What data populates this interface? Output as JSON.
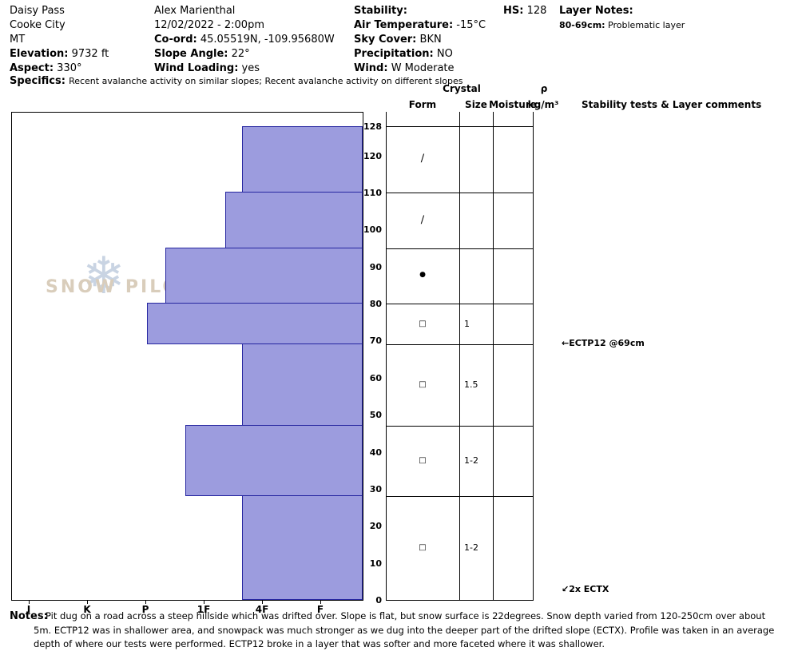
{
  "header": {
    "columns": [
      {
        "lines": [
          {
            "text": "Daisy Pass"
          },
          {
            "text": "Cooke City"
          },
          {
            "text": "MT"
          },
          {
            "label": "Elevation:",
            "value": "9732 ft"
          },
          {
            "label": "Aspect:",
            "value": "330°"
          }
        ]
      },
      {
        "lines": [
          {
            "text": "Alex Marienthal"
          },
          {
            "text": "12/02/2022 - 2:00pm"
          },
          {
            "label": "Co-ord:",
            "value": "45.05519N, -109.95680W"
          },
          {
            "label": "Slope Angle:",
            "value": "22°"
          },
          {
            "label": "Wind Loading:",
            "value": "yes"
          }
        ]
      },
      {
        "lines": [
          {
            "label": "Stability:",
            "value": ""
          },
          {
            "label": "Air Temperature:",
            "value": "-15°C"
          },
          {
            "label": "Sky Cover:",
            "value": "BKN"
          },
          {
            "label": "Precipitation:",
            "value": "NO"
          },
          {
            "label": "Wind:",
            "value": "W Moderate"
          }
        ]
      },
      {
        "lines": [
          {
            "label": "HS:",
            "value": "128"
          }
        ]
      },
      {
        "lines": [
          {
            "label": "Layer Notes:",
            "value": ""
          },
          {
            "label": "80-69cm:",
            "value": "Problematic layer",
            "small": true
          }
        ]
      }
    ],
    "specifics_label": "Specifics:",
    "specifics_text": "Recent avalanche activity on similar slopes; Recent avalanche activity on different slopes"
  },
  "table": {
    "header": {
      "crystal": "Crystal",
      "form": "Form",
      "size": "Size",
      "moisture": "Moisture",
      "density_rho": "ρ",
      "density_units": "kg/m³",
      "stability": "Stability tests & Layer comments"
    }
  },
  "watermark": {
    "text": "SNOW PILOT",
    "icon": "snowflake"
  },
  "chart_data": {
    "type": "bar",
    "subtype": "snow-profile-hardness",
    "hs_cm": 128,
    "depth_axis": {
      "unit": "cm",
      "max": 128,
      "ticks": [
        128,
        120,
        110,
        100,
        90,
        80,
        70,
        60,
        50,
        40,
        30,
        20,
        10,
        0
      ]
    },
    "hardness_axis": {
      "categories": [
        "I",
        "K",
        "P",
        "1F",
        "4F",
        "F"
      ],
      "scale_values": {
        "F": 1,
        "4F": 2,
        "1F": 3,
        "P": 4,
        "K": 5,
        "I": 6
      }
    },
    "layers": [
      {
        "top_cm": 128,
        "bottom_cm": 110,
        "hardness": "4F+",
        "hardness_value": 2.34,
        "grain_form": "DF",
        "grain_symbol": "∕",
        "grain_size_mm": "",
        "moisture": ""
      },
      {
        "top_cm": 110,
        "bottom_cm": 95,
        "hardness": "1F-",
        "hardness_value": 2.63,
        "grain_form": "DF",
        "grain_symbol": "∕",
        "grain_size_mm": "",
        "moisture": ""
      },
      {
        "top_cm": 95,
        "bottom_cm": 80,
        "hardness": "P-",
        "hardness_value": 3.66,
        "grain_form": "RG",
        "grain_symbol": "●",
        "grain_size_mm": "",
        "moisture": ""
      },
      {
        "top_cm": 80,
        "bottom_cm": 69,
        "hardness": "P",
        "hardness_value": 3.97,
        "grain_form": "FC",
        "grain_symbol": "□",
        "grain_size_mm": "1",
        "moisture": ""
      },
      {
        "top_cm": 69,
        "bottom_cm": 47,
        "hardness": "4F+",
        "hardness_value": 2.34,
        "grain_form": "FC",
        "grain_symbol": "□",
        "grain_size_mm": "1.5",
        "moisture": ""
      },
      {
        "top_cm": 47,
        "bottom_cm": 28,
        "hardness": "1F+",
        "hardness_value": 3.32,
        "grain_form": "FC",
        "grain_symbol": "□",
        "grain_size_mm": "1-2",
        "moisture": ""
      },
      {
        "top_cm": 28,
        "bottom_cm": 0,
        "hardness": "4F+",
        "hardness_value": 2.34,
        "grain_form": "FC",
        "grain_symbol": "□",
        "grain_size_mm": "1-2",
        "moisture": ""
      }
    ],
    "stability_tests": [
      {
        "label": "ECTP12 @69cm",
        "depth_cm": 69,
        "arrow": "←"
      },
      {
        "label": "2x ECTX",
        "depth_cm": 0,
        "arrow": "↙"
      }
    ],
    "colors": {
      "bar_fill": "#9c9cde",
      "bar_border": "#2626a0"
    }
  },
  "notes": {
    "label": "Notes:",
    "text": "Pit dug on a road across a steep hillside which was drifted over. Slope is flat, but snow surface is 22degrees. Snow depth varied from 120-250cm over about 5m. ECTP12 was in shallower area, and snowpack was much stronger as we dug into the deeper part of the drifted slope (ECTX). Profile was taken in an average depth of where our tests were performed. ECTP12 broke in a layer that  was softer and more faceted where it was shallower."
  }
}
